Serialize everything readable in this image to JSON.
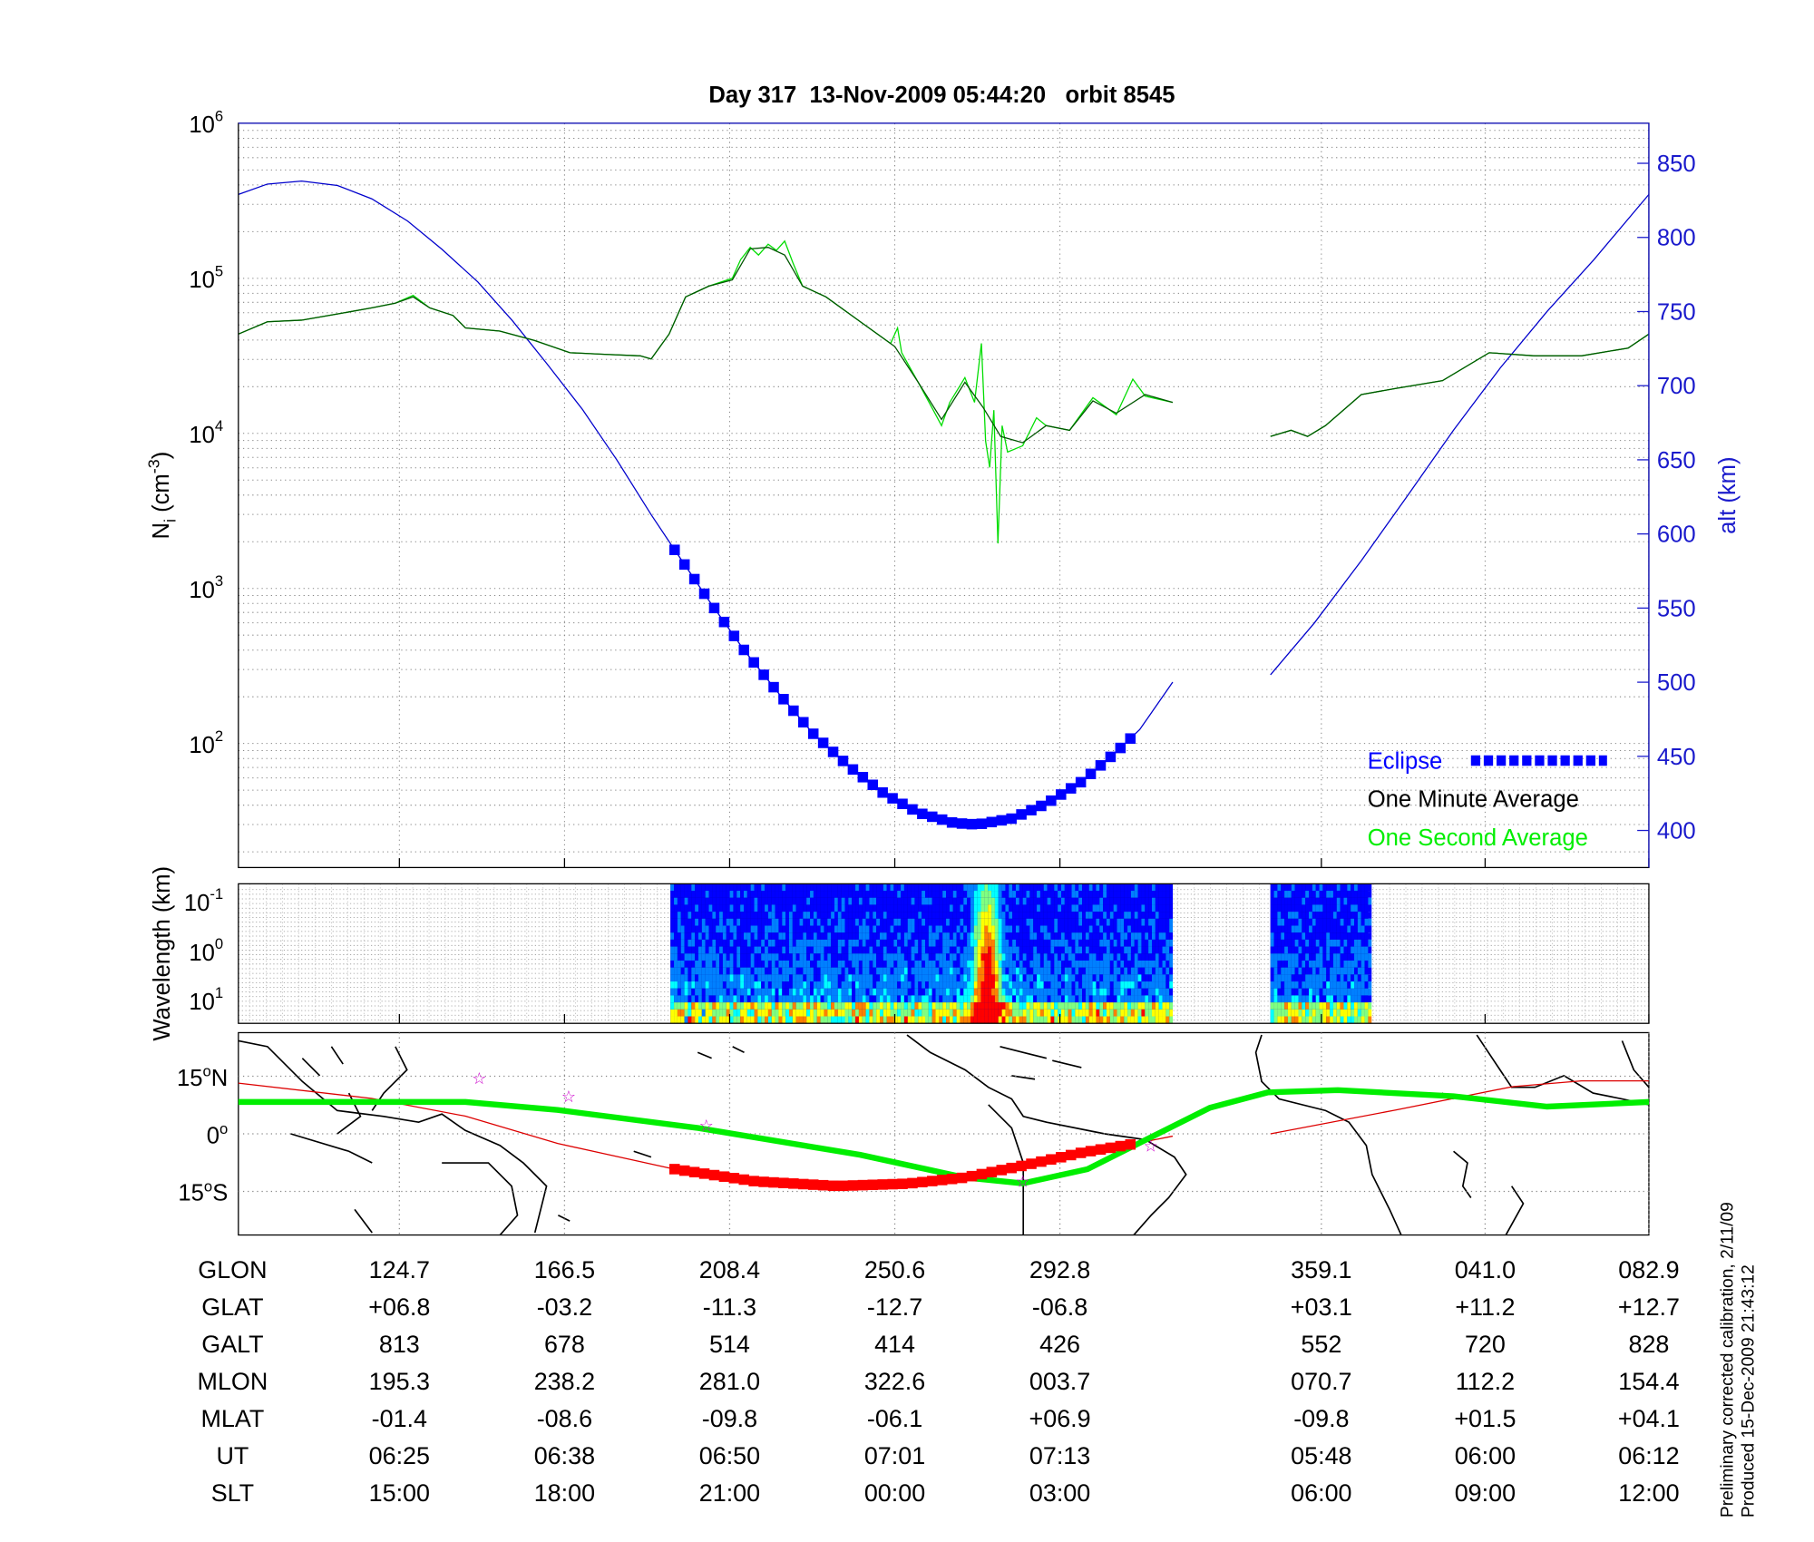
{
  "chart_data": [
    {
      "type": "line",
      "title": "Day 317  13-Nov-2009 05:44:20   orbit 8545",
      "xlabel": "",
      "xunit": "minutes from left edge (approx.)",
      "xlim": [
        0,
        102.5
      ],
      "xticks": [
        11.7,
        23.7,
        35.7,
        47.7,
        59.7,
        78.7,
        90.6,
        102.5
      ],
      "ylabel_left": {
        "base": "N",
        "sub": "i",
        "unit": " (cm",
        "sup": "-3",
        "close": ")"
      },
      "ylim_left_log10": [
        1.2,
        6
      ],
      "yticks_left_exponents": [
        2,
        3,
        4,
        5,
        6
      ],
      "ylabel_right": "alt (km)",
      "ylim_right": [
        375,
        877
      ],
      "yticks_right": [
        400,
        450,
        500,
        550,
        600,
        650,
        700,
        750,
        800,
        850
      ],
      "grid": true,
      "legend_position": "bottom-right",
      "legend": [
        {
          "label": "Eclipse",
          "color": "#0000ff"
        },
        {
          "label": "One Minute Average",
          "color": "#000000"
        },
        {
          "label": "One Second Average",
          "color": "#00ff00"
        }
      ],
      "series": [
        {
          "name": "altitude",
          "color": "#0000cc",
          "axis": "right",
          "segments": [
            [
              [
                0,
                829
              ],
              [
                2.1,
                836
              ],
              [
                4.6,
                838
              ],
              [
                7.2,
                835
              ],
              [
                9.7,
                826
              ],
              [
                12.3,
                811
              ],
              [
                14.8,
                792
              ],
              [
                17.4,
                770
              ],
              [
                19.9,
                744
              ],
              [
                22.4,
                715
              ],
              [
                25.0,
                684
              ],
              [
                27.5,
                650
              ],
              [
                30.0,
                613
              ],
              [
                31.5,
                592
              ],
              [
                34.2,
                555
              ],
              [
                36.8,
                521
              ],
              [
                39.3,
                492
              ],
              [
                41.8,
                465
              ],
              [
                44.4,
                443
              ],
              [
                46.9,
                425
              ],
              [
                49.4,
                412
              ],
              [
                52.0,
                405
              ],
              [
                53.7,
                404
              ],
              [
                56.2,
                408
              ],
              [
                58.7,
                418
              ],
              [
                61.3,
                433
              ],
              [
                63.8,
                453
              ],
              [
                65.5,
                468
              ],
              [
                67.9,
                500
              ]
            ],
            [
              [
                75.0,
                505
              ],
              [
                78.2,
                540
              ],
              [
                81.6,
                582
              ],
              [
                84.9,
                625
              ],
              [
                88.3,
                670
              ],
              [
                91.7,
                712
              ],
              [
                95.1,
                750
              ],
              [
                98.5,
                785
              ],
              [
                102.5,
                829
              ]
            ]
          ]
        },
        {
          "name": "Eclipse",
          "color": "#0000ff",
          "axis": "right",
          "range": [
            31.7,
            65.1
          ]
        },
        {
          "name": "One Second Average",
          "color": "#00dd00",
          "axis": "left_log10",
          "segments": [
            [
              [
                0,
                4.64
              ],
              [
                2.1,
                4.72
              ],
              [
                4.6,
                4.73
              ],
              [
                7.2,
                4.77
              ],
              [
                9.7,
                4.81
              ],
              [
                11.4,
                4.84
              ],
              [
                12.7,
                4.89
              ],
              [
                13.9,
                4.81
              ],
              [
                15.6,
                4.76
              ],
              [
                16.5,
                4.68
              ],
              [
                19.0,
                4.66
              ],
              [
                21.5,
                4.6
              ],
              [
                24.1,
                4.52
              ],
              [
                26.6,
                4.51
              ],
              [
                29.2,
                4.5
              ],
              [
                30.0,
                4.48
              ],
              [
                31.3,
                4.64
              ],
              [
                32.5,
                4.88
              ],
              [
                34.2,
                4.95
              ],
              [
                35.9,
                5.0
              ],
              [
                36.5,
                5.12
              ],
              [
                37.2,
                5.2
              ],
              [
                37.8,
                5.15
              ],
              [
                38.5,
                5.22
              ],
              [
                39.1,
                5.18
              ],
              [
                39.7,
                5.24
              ],
              [
                40.3,
                5.1
              ],
              [
                41.0,
                4.95
              ],
              [
                42.7,
                4.88
              ],
              [
                45.2,
                4.72
              ],
              [
                47.4,
                4.58
              ],
              [
                47.9,
                4.68
              ],
              [
                48.2,
                4.52
              ],
              [
                49.4,
                4.33
              ],
              [
                50.5,
                4.15
              ],
              [
                51.1,
                4.05
              ],
              [
                51.7,
                4.2
              ],
              [
                52.8,
                4.36
              ],
              [
                53.5,
                4.2
              ],
              [
                54.0,
                4.58
              ],
              [
                54.3,
                3.95
              ],
              [
                54.6,
                3.78
              ],
              [
                54.9,
                4.15
              ],
              [
                55.2,
                3.29
              ],
              [
                55.5,
                4.05
              ],
              [
                55.9,
                3.88
              ],
              [
                57.0,
                3.92
              ],
              [
                58.0,
                4.1
              ],
              [
                58.7,
                4.05
              ],
              [
                60.4,
                4.02
              ],
              [
                62.1,
                4.23
              ],
              [
                63.8,
                4.12
              ],
              [
                65.0,
                4.35
              ],
              [
                65.9,
                4.24
              ],
              [
                67.9,
                4.2
              ]
            ],
            [
              [
                75.0,
                3.98
              ],
              [
                76.5,
                4.02
              ],
              [
                77.7,
                3.98
              ],
              [
                79.0,
                4.05
              ],
              [
                81.6,
                4.25
              ],
              [
                84.1,
                4.29
              ],
              [
                87.5,
                4.34
              ],
              [
                90.9,
                4.52
              ],
              [
                94.2,
                4.5
              ],
              [
                97.6,
                4.5
              ],
              [
                101.0,
                4.55
              ],
              [
                102.5,
                4.64
              ]
            ]
          ]
        },
        {
          "name": "One Minute Average",
          "color": "#005500",
          "axis": "left_log10",
          "segments": [
            [
              [
                0,
                4.64
              ],
              [
                2.1,
                4.72
              ],
              [
                4.6,
                4.73
              ],
              [
                7.2,
                4.77
              ],
              [
                9.7,
                4.81
              ],
              [
                11.4,
                4.84
              ],
              [
                12.7,
                4.88
              ],
              [
                13.9,
                4.81
              ],
              [
                15.6,
                4.76
              ],
              [
                16.5,
                4.68
              ],
              [
                19.0,
                4.66
              ],
              [
                21.5,
                4.6
              ],
              [
                24.1,
                4.52
              ],
              [
                26.6,
                4.51
              ],
              [
                29.2,
                4.5
              ],
              [
                30.0,
                4.48
              ],
              [
                31.3,
                4.64
              ],
              [
                32.5,
                4.88
              ],
              [
                34.2,
                4.95
              ],
              [
                35.9,
                4.99
              ],
              [
                37.2,
                5.19
              ],
              [
                38.5,
                5.2
              ],
              [
                39.7,
                5.15
              ],
              [
                41.0,
                4.95
              ],
              [
                42.7,
                4.88
              ],
              [
                45.2,
                4.72
              ],
              [
                47.7,
                4.56
              ],
              [
                49.4,
                4.33
              ],
              [
                51.1,
                4.09
              ],
              [
                52.8,
                4.33
              ],
              [
                54.1,
                4.17
              ],
              [
                55.4,
                3.98
              ],
              [
                57.0,
                3.94
              ],
              [
                58.7,
                4.05
              ],
              [
                60.4,
                4.02
              ],
              [
                62.1,
                4.21
              ],
              [
                63.8,
                4.13
              ],
              [
                65.9,
                4.25
              ],
              [
                67.9,
                4.2
              ]
            ],
            [
              [
                75.0,
                3.98
              ],
              [
                76.5,
                4.02
              ],
              [
                77.7,
                3.98
              ],
              [
                79.0,
                4.05
              ],
              [
                81.6,
                4.25
              ],
              [
                84.1,
                4.29
              ],
              [
                87.5,
                4.34
              ],
              [
                90.9,
                4.52
              ],
              [
                94.2,
                4.5
              ],
              [
                97.6,
                4.5
              ],
              [
                101.0,
                4.55
              ],
              [
                102.5,
                4.64
              ]
            ]
          ]
        }
      ]
    },
    {
      "type": "heatmap",
      "ylabel": "Wavelength (km)",
      "yticks_exponents": [
        "-1",
        "0",
        "1"
      ],
      "data_ranges_minutes": [
        [
          31.4,
          67.9
        ],
        [
          75.0,
          82.1
        ]
      ],
      "peak_activity_minutes": 54.3,
      "colormap": [
        "#00008f",
        "#0000ff",
        "#0080ff",
        "#00ffff",
        "#80ff80",
        "#ffff00",
        "#ff8000",
        "#ff0000"
      ]
    },
    {
      "type": "line",
      "subtype": "map-track",
      "ylabel_ticks": [
        "15",
        "N",
        "0",
        "",
        "15",
        "S"
      ],
      "lat_ticks": [
        15,
        0,
        -15
      ],
      "series": [
        {
          "name": "magnetic-equator-track",
          "color": "#00ee00",
          "points": [
            [
              0,
              8.3
            ],
            [
              16.5,
              8.3
            ],
            [
              23.2,
              6.2
            ],
            [
              33.4,
              1.5
            ],
            [
              45.2,
              -5.5
            ],
            [
              52.8,
              -11.4
            ],
            [
              57.0,
              -12.9
            ],
            [
              61.7,
              -9.2
            ],
            [
              66.3,
              -0.9
            ],
            [
              70.6,
              6.8
            ],
            [
              74.8,
              10.8
            ],
            [
              79.9,
              11.4
            ],
            [
              88.3,
              9.8
            ],
            [
              95.1,
              7.1
            ],
            [
              102.5,
              8.3
            ]
          ]
        },
        {
          "name": "satellite-ground-track",
          "color": "#dd0000",
          "segments": [
            [
              [
                0,
                13.2
              ],
              [
                9.7,
                9.2
              ],
              [
                16.5,
                4.6
              ],
              [
                23.2,
                -2.5
              ],
              [
                31.7,
                -9.2
              ],
              [
                37.6,
                -12.4
              ],
              [
                43.5,
                -13.6
              ],
              [
                48.6,
                -13.0
              ],
              [
                52.8,
                -11.4
              ],
              [
                57.0,
                -8.3
              ],
              [
                61.3,
                -4.9
              ],
              [
                65.1,
                -2.6
              ],
              [
                67.9,
                -0.6
              ]
            ],
            [
              [
                75.0,
                0
              ],
              [
                84.1,
                6.2
              ],
              [
                92.6,
                12.3
              ],
              [
                97.6,
                13.8
              ],
              [
                102.5,
                13.8
              ]
            ]
          ]
        },
        {
          "name": "eclipse-ground-track",
          "color": "#ff0000",
          "range": [
            31.7,
            65.1
          ]
        }
      ],
      "stars": [
        [
          17.5,
          14.5
        ],
        [
          24.0,
          9.8
        ],
        [
          34.0,
          2.2
        ],
        [
          66.3,
          -3.1
        ],
        [
          57.0,
          -12.3
        ]
      ],
      "star_color": "#cc00cc"
    }
  ],
  "table": {
    "rows": [
      {
        "label": "GLON",
        "values": [
          "124.7",
          "166.5",
          "208.4",
          "250.6",
          "292.8",
          "359.1",
          "041.0",
          "082.9"
        ]
      },
      {
        "label": "GLAT",
        "values": [
          "+06.8",
          "-03.2",
          "-11.3",
          "-12.7",
          "-06.8",
          "+03.1",
          "+11.2",
          "+12.7"
        ]
      },
      {
        "label": "GALT",
        "values": [
          "813",
          "678",
          "514",
          "414",
          "426",
          "552",
          "720",
          "828"
        ]
      },
      {
        "label": "MLON",
        "values": [
          "195.3",
          "238.2",
          "281.0",
          "322.6",
          "003.7",
          "070.7",
          "112.2",
          "154.4"
        ]
      },
      {
        "label": "MLAT",
        "values": [
          "-01.4",
          "-08.6",
          "-09.8",
          "-06.1",
          "+06.9",
          "-09.8",
          "+01.5",
          "+04.1"
        ]
      },
      {
        "label": "UT",
        "values": [
          "06:25",
          "06:38",
          "06:50",
          "07:01",
          "07:13",
          "05:48",
          "06:00",
          "06:12"
        ]
      },
      {
        "label": "SLT",
        "values": [
          "15:00",
          "18:00",
          "21:00",
          "00:00",
          "03:00",
          "06:00",
          "09:00",
          "12:00"
        ]
      }
    ]
  },
  "footer": {
    "line1": "Preliminary corrected calibration, 2/11/09",
    "line2": "Produced 15-Dec-2009 21:43:12"
  }
}
